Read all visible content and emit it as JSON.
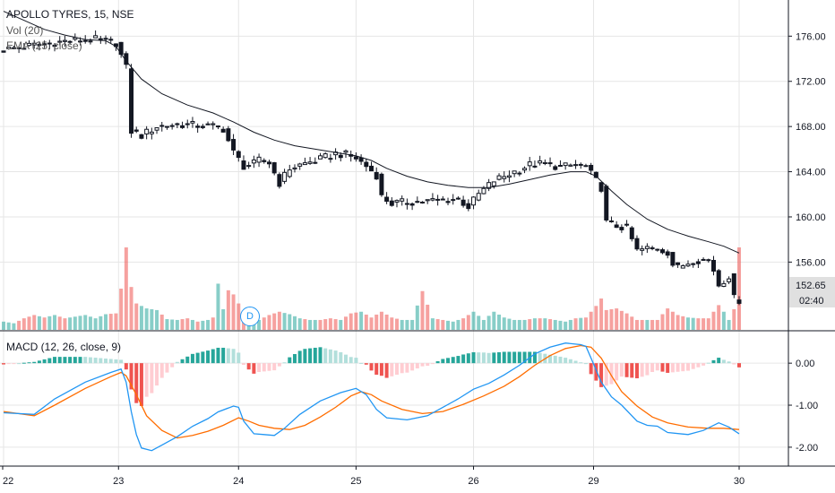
{
  "header": {
    "symbol_line": "APOLLO TYRES, 15, NSE",
    "vol_label": "Vol (20)",
    "ema_label": "EMA (25, close)"
  },
  "macd_label": "MACD (12, 26, close, 9)",
  "event_badge": "D",
  "colors": {
    "up": "#26a69a",
    "down": "#ef5350",
    "up_light": "#b2dfdb",
    "down_light": "#ffcdd2",
    "macd_line": "#2196f3",
    "signal_line": "#ff6d00",
    "ema_line": "#131722",
    "grid": "#e6e6e6",
    "last_tag": "#e0e0e0"
  },
  "chart_data": [
    {
      "type": "candlestick",
      "title": "APOLLO TYRES, 15, NSE",
      "x_tick_labels": [
        "22",
        "23",
        "24",
        "25",
        "26",
        "29",
        "30"
      ],
      "y_ticks": [
        156.0,
        160.0,
        164.0,
        168.0,
        172.0,
        176.0
      ],
      "y_tick_labels": [
        "156.00",
        "160.00",
        "164.00",
        "168.00",
        "172.00",
        "176.00"
      ],
      "ylim": [
        150.0,
        179.2
      ],
      "last_price": "152.65",
      "countdown": "02:40",
      "price_path": [
        [
          0,
          174.8
        ],
        [
          6,
          175.2
        ],
        [
          13,
          175.6
        ],
        [
          18,
          175.7
        ],
        [
          22,
          175.4
        ],
        [
          24,
          173.2
        ],
        [
          25,
          167.6
        ],
        [
          27,
          167.2
        ],
        [
          30,
          168.0
        ],
        [
          34,
          168.2
        ],
        [
          38,
          168.1
        ],
        [
          41,
          168.0
        ],
        [
          43,
          167.8
        ],
        [
          45,
          165.7
        ],
        [
          47,
          164.5
        ],
        [
          49,
          164.7
        ],
        [
          50,
          165.0
        ],
        [
          52,
          164.8
        ],
        [
          54,
          163.0
        ],
        [
          56,
          164.3
        ],
        [
          58,
          164.6
        ],
        [
          62,
          165.1
        ],
        [
          65,
          165.6
        ],
        [
          67,
          165.5
        ],
        [
          69,
          165.2
        ],
        [
          71,
          164.5
        ],
        [
          73,
          163.7
        ],
        [
          74,
          161.8
        ],
        [
          76,
          161.2
        ],
        [
          79,
          161.3
        ],
        [
          83,
          161.4
        ],
        [
          86,
          161.5
        ],
        [
          89,
          161.6
        ],
        [
          91,
          160.9
        ],
        [
          93,
          162.0
        ],
        [
          96,
          163.2
        ],
        [
          98,
          163.6
        ],
        [
          101,
          164.2
        ],
        [
          103,
          164.6
        ],
        [
          106,
          164.7
        ],
        [
          109,
          164.4
        ],
        [
          112,
          164.6
        ],
        [
          114,
          164.4
        ],
        [
          117,
          162.6
        ],
        [
          118,
          159.5
        ],
        [
          120,
          159.2
        ],
        [
          122,
          159.0
        ],
        [
          124,
          157.0
        ],
        [
          126,
          157.2
        ],
        [
          128,
          157.2
        ],
        [
          130,
          156.9
        ],
        [
          131,
          155.8
        ],
        [
          132,
          155.5
        ],
        [
          135,
          156.2
        ],
        [
          138,
          156.2
        ],
        [
          139,
          155.3
        ],
        [
          140,
          154.0
        ],
        [
          142,
          154.8
        ],
        [
          143,
          152.8
        ],
        [
          144,
          152.65
        ]
      ],
      "ema_25": [
        [
          0,
          178.2
        ],
        [
          4,
          177.4
        ],
        [
          8,
          176.6
        ],
        [
          12,
          176.1
        ],
        [
          16,
          175.7
        ],
        [
          20,
          175.6
        ],
        [
          22,
          175.1
        ],
        [
          24,
          173.8
        ],
        [
          27,
          172.2
        ],
        [
          31,
          170.9
        ],
        [
          36,
          169.9
        ],
        [
          41,
          169.2
        ],
        [
          45,
          168.4
        ],
        [
          49,
          167.5
        ],
        [
          53,
          166.8
        ],
        [
          57,
          166.3
        ],
        [
          61,
          166.0
        ],
        [
          65,
          165.7
        ],
        [
          69,
          165.4
        ],
        [
          72,
          165.0
        ],
        [
          75,
          164.3
        ],
        [
          79,
          163.6
        ],
        [
          83,
          163.1
        ],
        [
          87,
          162.8
        ],
        [
          91,
          162.6
        ],
        [
          95,
          162.6
        ],
        [
          99,
          162.9
        ],
        [
          103,
          163.3
        ],
        [
          107,
          163.7
        ],
        [
          111,
          164.0
        ],
        [
          114,
          164.0
        ],
        [
          116,
          163.6
        ],
        [
          119,
          162.3
        ],
        [
          122,
          161.1
        ],
        [
          126,
          159.8
        ],
        [
          130,
          158.9
        ],
        [
          134,
          158.3
        ],
        [
          138,
          157.8
        ],
        [
          141,
          157.4
        ],
        [
          144,
          156.8
        ]
      ],
      "volume": [
        [
          0,
          0.1
        ],
        [
          2,
          0.08
        ],
        [
          4,
          0.14
        ],
        [
          6,
          0.18
        ],
        [
          8,
          0.15
        ],
        [
          10,
          0.18
        ],
        [
          12,
          0.14
        ],
        [
          14,
          0.16
        ],
        [
          16,
          0.18
        ],
        [
          18,
          0.14
        ],
        [
          20,
          0.19
        ],
        [
          22,
          0.2
        ],
        [
          23,
          0.5
        ],
        [
          24,
          1.0
        ],
        [
          25,
          0.52
        ],
        [
          26,
          0.32
        ],
        [
          28,
          0.26
        ],
        [
          30,
          0.24
        ],
        [
          32,
          0.13
        ],
        [
          34,
          0.12
        ],
        [
          36,
          0.14
        ],
        [
          38,
          0.1
        ],
        [
          40,
          0.12
        ],
        [
          41,
          0.15
        ],
        [
          42,
          0.56
        ],
        [
          43,
          0.25
        ],
        [
          44,
          0.48
        ],
        [
          45,
          0.43
        ],
        [
          46,
          0.32
        ],
        [
          48,
          0.14
        ],
        [
          50,
          0.12
        ],
        [
          52,
          0.18
        ],
        [
          54,
          0.22
        ],
        [
          56,
          0.19
        ],
        [
          58,
          0.14
        ],
        [
          60,
          0.12
        ],
        [
          62,
          0.12
        ],
        [
          64,
          0.14
        ],
        [
          66,
          0.12
        ],
        [
          68,
          0.2
        ],
        [
          70,
          0.22
        ],
        [
          72,
          0.15
        ],
        [
          74,
          0.22
        ],
        [
          76,
          0.15
        ],
        [
          78,
          0.12
        ],
        [
          80,
          0.12
        ],
        [
          82,
          0.47
        ],
        [
          84,
          0.14
        ],
        [
          86,
          0.12
        ],
        [
          88,
          0.1
        ],
        [
          90,
          0.14
        ],
        [
          92,
          0.22
        ],
        [
          94,
          0.12
        ],
        [
          96,
          0.22
        ],
        [
          98,
          0.15
        ],
        [
          100,
          0.12
        ],
        [
          102,
          0.12
        ],
        [
          104,
          0.14
        ],
        [
          106,
          0.14
        ],
        [
          108,
          0.12
        ],
        [
          110,
          0.1
        ],
        [
          112,
          0.14
        ],
        [
          114,
          0.15
        ],
        [
          116,
          0.29
        ],
        [
          117,
          0.38
        ],
        [
          118,
          0.24
        ],
        [
          120,
          0.26
        ],
        [
          122,
          0.2
        ],
        [
          124,
          0.12
        ],
        [
          126,
          0.12
        ],
        [
          128,
          0.12
        ],
        [
          130,
          0.26
        ],
        [
          132,
          0.18
        ],
        [
          134,
          0.15
        ],
        [
          136,
          0.14
        ],
        [
          138,
          0.14
        ],
        [
          140,
          0.3
        ],
        [
          141,
          0.22
        ],
        [
          142,
          0.12
        ],
        [
          143,
          0.25
        ],
        [
          144,
          1.0
        ]
      ]
    },
    {
      "type": "line",
      "title": "MACD (12, 26, close, 9)",
      "y_ticks": [
        0.0,
        -1.0,
        -2.0
      ],
      "y_tick_labels": [
        "0.00",
        "-1.00",
        "-2.00"
      ],
      "ylim": [
        -2.45,
        0.75
      ],
      "series": [
        {
          "name": "MACD",
          "points": [
            [
              0,
              -1.18
            ],
            [
              6,
              -1.22
            ],
            [
              10,
              -0.85
            ],
            [
              16,
              -0.45
            ],
            [
              21,
              -0.22
            ],
            [
              23,
              -0.14
            ],
            [
              24,
              -0.45
            ],
            [
              25,
              -1.15
            ],
            [
              26,
              -1.7
            ],
            [
              27,
              -2.02
            ],
            [
              29,
              -2.08
            ],
            [
              31,
              -1.95
            ],
            [
              34,
              -1.75
            ],
            [
              37,
              -1.5
            ],
            [
              40,
              -1.32
            ],
            [
              42,
              -1.16
            ],
            [
              45,
              -1.02
            ],
            [
              46,
              -1.05
            ],
            [
              47,
              -1.38
            ],
            [
              49,
              -1.68
            ],
            [
              51,
              -1.7
            ],
            [
              53,
              -1.72
            ],
            [
              55,
              -1.55
            ],
            [
              58,
              -1.22
            ],
            [
              62,
              -0.9
            ],
            [
              66,
              -0.7
            ],
            [
              69,
              -0.6
            ],
            [
              71,
              -0.75
            ],
            [
              73,
              -1.1
            ],
            [
              75,
              -1.3
            ],
            [
              79,
              -1.35
            ],
            [
              83,
              -1.25
            ],
            [
              86,
              -1.05
            ],
            [
              89,
              -0.85
            ],
            [
              92,
              -0.62
            ],
            [
              95,
              -0.48
            ],
            [
              98,
              -0.28
            ],
            [
              101,
              -0.05
            ],
            [
              104,
              0.22
            ],
            [
              107,
              0.38
            ],
            [
              110,
              0.48
            ],
            [
              113,
              0.44
            ],
            [
              114,
              0.4
            ],
            [
              115,
              0.12
            ],
            [
              117,
              -0.45
            ],
            [
              119,
              -0.8
            ],
            [
              121,
              -1.0
            ],
            [
              124,
              -1.38
            ],
            [
              126,
              -1.48
            ],
            [
              128,
              -1.5
            ],
            [
              130,
              -1.65
            ],
            [
              134,
              -1.7
            ],
            [
              137,
              -1.6
            ],
            [
              140,
              -1.42
            ],
            [
              142,
              -1.52
            ],
            [
              144,
              -1.68
            ]
          ]
        },
        {
          "name": "Signal",
          "points": [
            [
              0,
              -1.15
            ],
            [
              6,
              -1.25
            ],
            [
              10,
              -1.0
            ],
            [
              16,
              -0.6
            ],
            [
              21,
              -0.32
            ],
            [
              23,
              -0.22
            ],
            [
              24,
              -0.3
            ],
            [
              26,
              -0.75
            ],
            [
              28,
              -1.25
            ],
            [
              31,
              -1.6
            ],
            [
              34,
              -1.78
            ],
            [
              37,
              -1.72
            ],
            [
              40,
              -1.62
            ],
            [
              43,
              -1.48
            ],
            [
              46,
              -1.3
            ],
            [
              48,
              -1.38
            ],
            [
              50,
              -1.48
            ],
            [
              53,
              -1.55
            ],
            [
              56,
              -1.58
            ],
            [
              59,
              -1.48
            ],
            [
              62,
              -1.28
            ],
            [
              65,
              -1.05
            ],
            [
              68,
              -0.78
            ],
            [
              70,
              -0.68
            ],
            [
              72,
              -0.75
            ],
            [
              74,
              -0.9
            ],
            [
              78,
              -1.1
            ],
            [
              82,
              -1.2
            ],
            [
              86,
              -1.15
            ],
            [
              90,
              -0.98
            ],
            [
              94,
              -0.78
            ],
            [
              98,
              -0.55
            ],
            [
              101,
              -0.32
            ],
            [
              104,
              -0.05
            ],
            [
              107,
              0.18
            ],
            [
              110,
              0.35
            ],
            [
              113,
              0.42
            ],
            [
              115,
              0.38
            ],
            [
              117,
              0.12
            ],
            [
              119,
              -0.3
            ],
            [
              121,
              -0.68
            ],
            [
              124,
              -1.02
            ],
            [
              127,
              -1.28
            ],
            [
              130,
              -1.42
            ],
            [
              134,
              -1.52
            ],
            [
              138,
              -1.55
            ],
            [
              141,
              -1.55
            ],
            [
              144,
              -1.58
            ]
          ]
        }
      ]
    }
  ]
}
